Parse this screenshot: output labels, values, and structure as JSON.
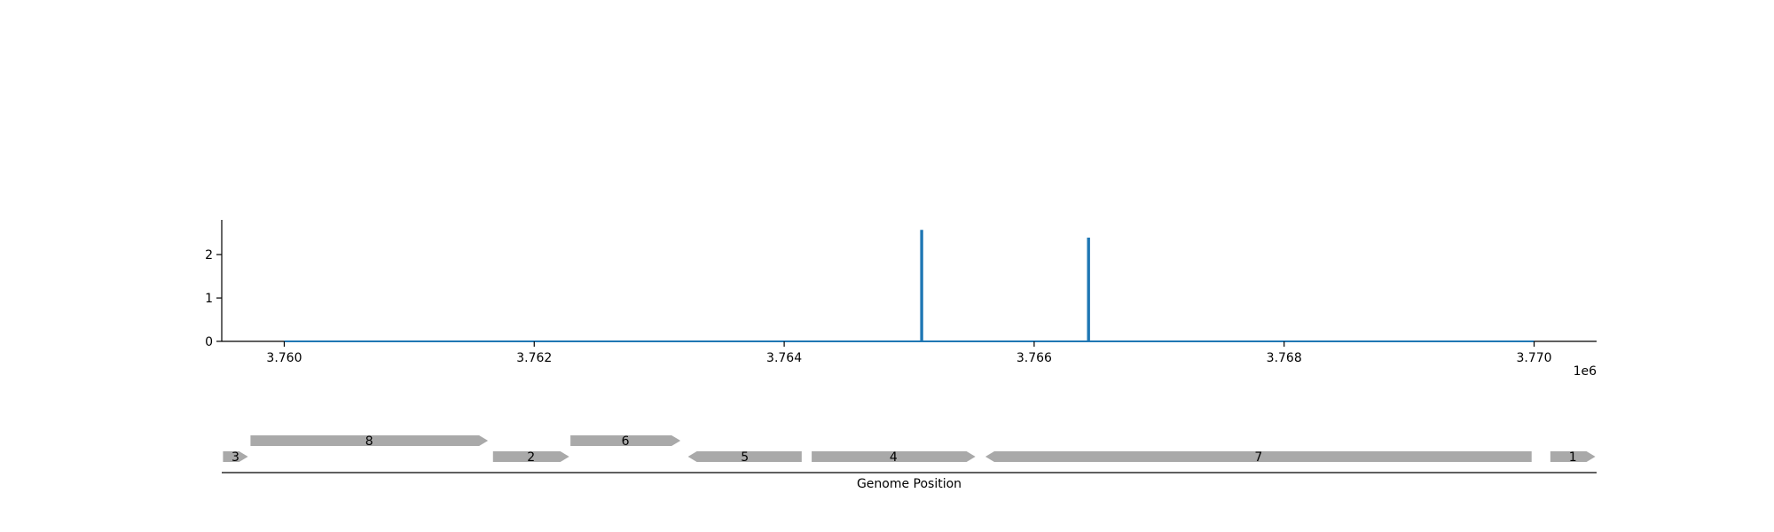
{
  "chart_data": {
    "type": "line",
    "title": "",
    "xlabel": "",
    "ylabel": "",
    "x_offset_label": "1e6",
    "xlim": [
      3759500,
      3770500
    ],
    "ylim": [
      0,
      2.8
    ],
    "x_ticks": [
      3760000,
      3762000,
      3764000,
      3766000,
      3768000,
      3770000
    ],
    "x_tick_labels": [
      "3.760",
      "3.762",
      "3.764",
      "3.766",
      "3.768",
      "3.770"
    ],
    "y_ticks": [
      0,
      1,
      2
    ],
    "y_tick_labels": [
      "0",
      "1",
      "2"
    ],
    "grid": false,
    "series": [
      {
        "color": "#1f77b4",
        "x": [
          3760000,
          3765095,
          3765095,
          3765105,
          3765105,
          3766430,
          3766430,
          3766440,
          3766440,
          3770000
        ],
        "y": [
          0,
          0,
          2.55,
          2.55,
          0,
          0,
          2.37,
          2.37,
          0,
          0
        ]
      }
    ]
  },
  "gene_track": {
    "xlabel": "Genome Position",
    "color": "#a9a9a9",
    "genes": [
      {
        "label": "3",
        "start": 3759510,
        "end": 3759710,
        "strand": "+",
        "row": 0
      },
      {
        "label": "8",
        "start": 3759730,
        "end": 3761630,
        "strand": "+",
        "row": 1
      },
      {
        "label": "2",
        "start": 3761670,
        "end": 3762280,
        "strand": "+",
        "row": 0
      },
      {
        "label": "6",
        "start": 3762290,
        "end": 3763170,
        "strand": "+",
        "row": 1
      },
      {
        "label": "5",
        "start": 3763230,
        "end": 3764140,
        "strand": "-",
        "row": 0
      },
      {
        "label": "4",
        "start": 3764220,
        "end": 3765530,
        "strand": "+",
        "row": 0
      },
      {
        "label": "7",
        "start": 3765610,
        "end": 3769980,
        "strand": "-",
        "row": 0
      },
      {
        "label": "1",
        "start": 3770130,
        "end": 3770490,
        "strand": "+",
        "row": 0
      }
    ]
  }
}
